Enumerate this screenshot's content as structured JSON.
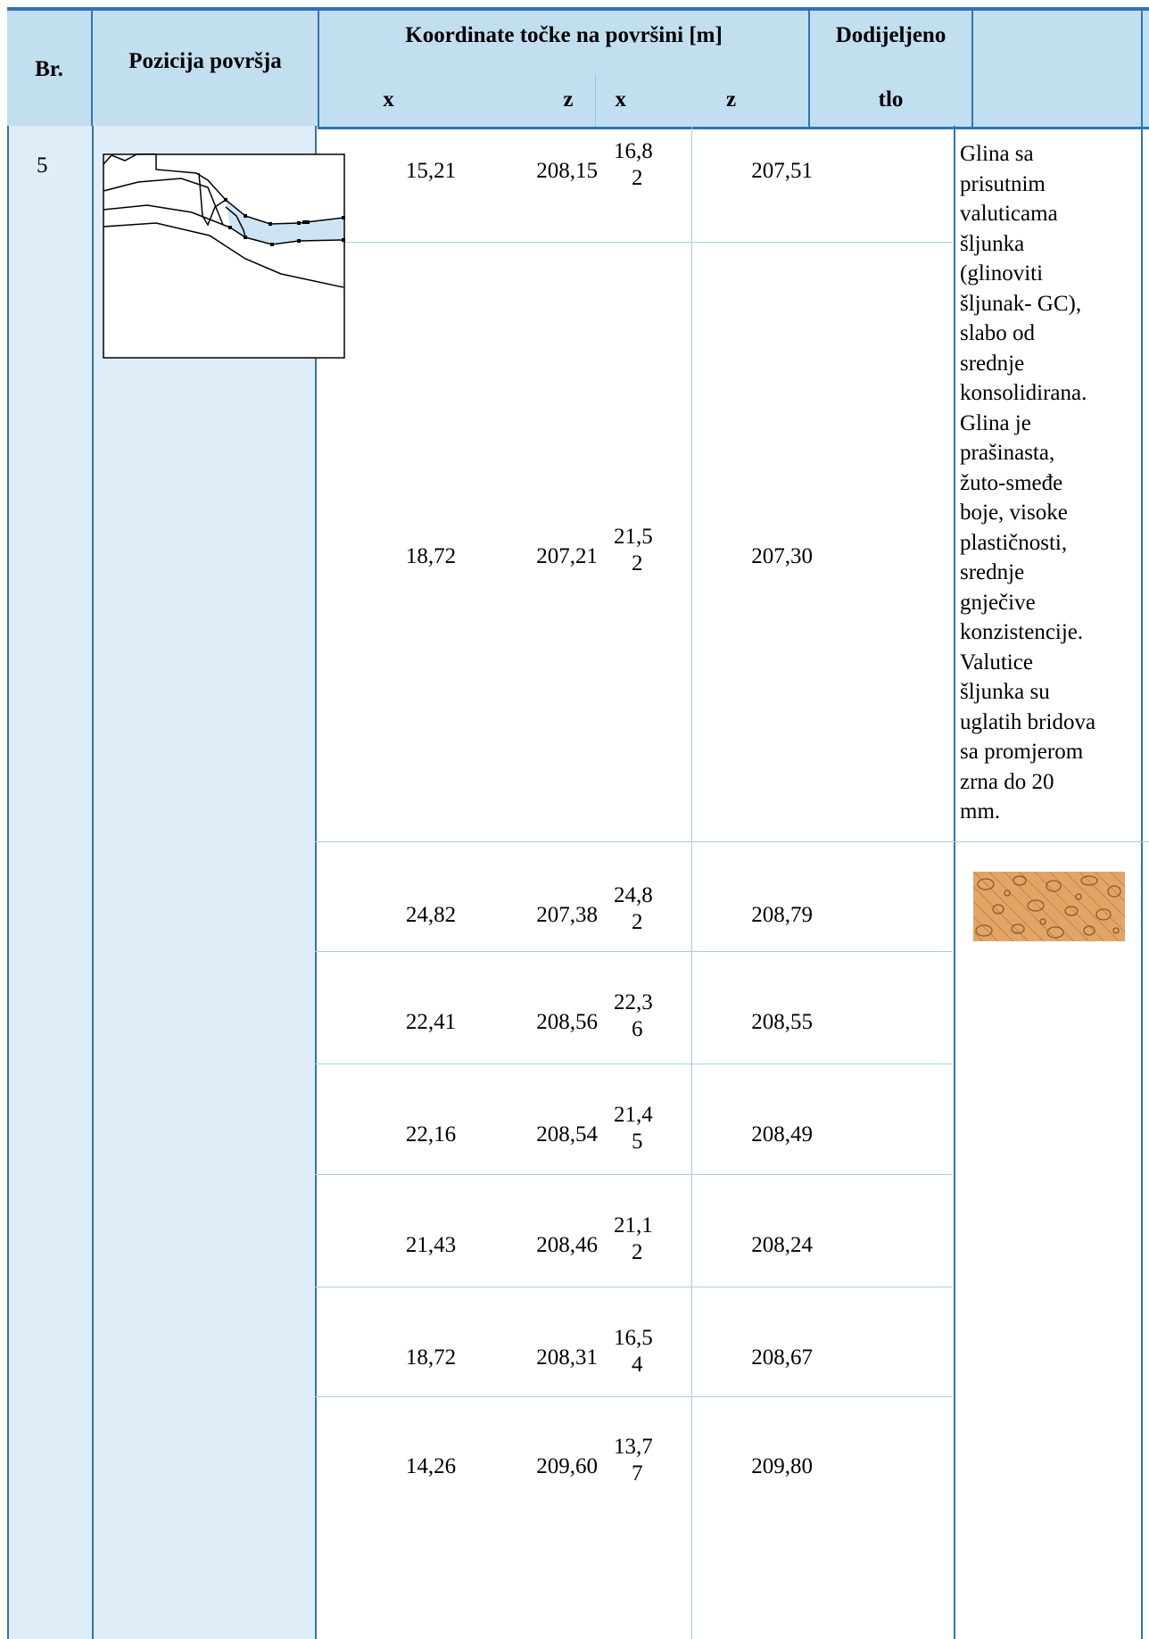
{
  "header": {
    "br": "Br.",
    "pozicija": "Pozicija površja",
    "koordinate": "Koordinate točke na površini [m]",
    "dodijeljeno": "Dodijeljeno",
    "tlo": "tlo",
    "col_x1": "x",
    "col_z1": "z",
    "col_x2": "x",
    "col_z2": "z"
  },
  "row": {
    "br": "5",
    "soil_description": "Glina sa\nprisutnim\nvaluticama\nšljunka\n(glinoviti\nšljunak- GC),\nslabo od\nsrednje\nkonsolidirana.\nGlina je\nprašinasta,\nžuto-smeđe\nboje, visoke\nplastičnosti,\nsrednje\ngnječive\nkonzistencije.\nValutice\nšljunka su\nuglatih bridova\nsa promjerom\nzrna do 20\nmm.",
    "soil_swatch_color": "#e2a566",
    "highlight_color": "#cde4f4"
  },
  "points": [
    {
      "x1": "15,21",
      "z1": "208,15",
      "x2a": "16,8",
      "x2b": "2",
      "z2": "207,51"
    },
    {
      "x1": "18,72",
      "z1": "207,21",
      "x2a": "21,5",
      "x2b": "2",
      "z2": "207,30"
    },
    {
      "x1": "24,82",
      "z1": "207,38",
      "x2a": "24,8",
      "x2b": "2",
      "z2": "208,79"
    },
    {
      "x1": "22,41",
      "z1": "208,56",
      "x2a": "22,3",
      "x2b": "6",
      "z2": "208,55"
    },
    {
      "x1": "22,16",
      "z1": "208,54",
      "x2a": "21,4",
      "x2b": "5",
      "z2": "208,49"
    },
    {
      "x1": "21,43",
      "z1": "208,46",
      "x2a": "21,1",
      "x2b": "2",
      "z2": "208,24"
    },
    {
      "x1": "18,72",
      "z1": "208,31",
      "x2a": "16,5",
      "x2b": "4",
      "z2": "208,67"
    },
    {
      "x1": "14,26",
      "z1": "209,60",
      "x2a": "13,7",
      "x2b": "7",
      "z2": "209,80"
    }
  ]
}
